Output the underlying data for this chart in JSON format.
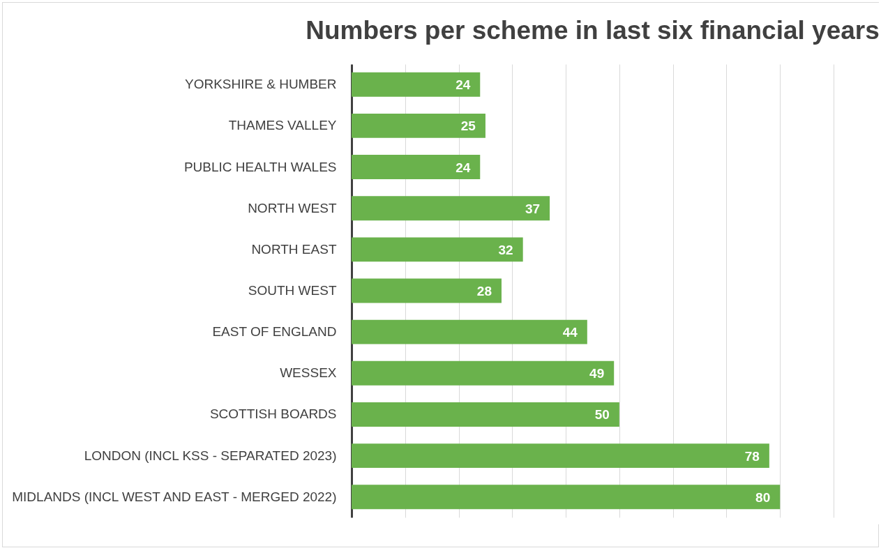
{
  "chart_data": {
    "type": "bar",
    "orientation": "horizontal",
    "title": "Numbers per scheme in last six financial years",
    "categories": [
      "YORKSHIRE & HUMBER",
      "THAMES VALLEY",
      "PUBLIC HEALTH WALES",
      "NORTH WEST",
      "NORTH EAST",
      "SOUTH WEST",
      "EAST OF ENGLAND",
      "WESSEX",
      "SCOTTISH BOARDS",
      "LONDON (INCL KSS - SEPARATED 2023)",
      "MIDLANDS (INCL WEST AND EAST - MERGED 2022)"
    ],
    "values": [
      24,
      25,
      24,
      37,
      32,
      28,
      44,
      49,
      50,
      78,
      80
    ],
    "color": "#6ab24c",
    "xlim": [
      0,
      90
    ],
    "xticks": [
      {
        "value": 0,
        "label": null
      },
      {
        "value": 10,
        "label": null
      },
      {
        "value": 20,
        "label": null
      },
      {
        "value": 30,
        "label": null
      },
      {
        "value": 40,
        "label": null
      },
      {
        "value": 50,
        "label": null
      },
      {
        "value": 60,
        "label": null
      },
      {
        "value": 70,
        "label": null
      },
      {
        "value": 80,
        "label": null
      },
      {
        "value": 90,
        "label": null
      }
    ],
    "grid": "x",
    "tick_labels": "y",
    "data_labels": true
  }
}
